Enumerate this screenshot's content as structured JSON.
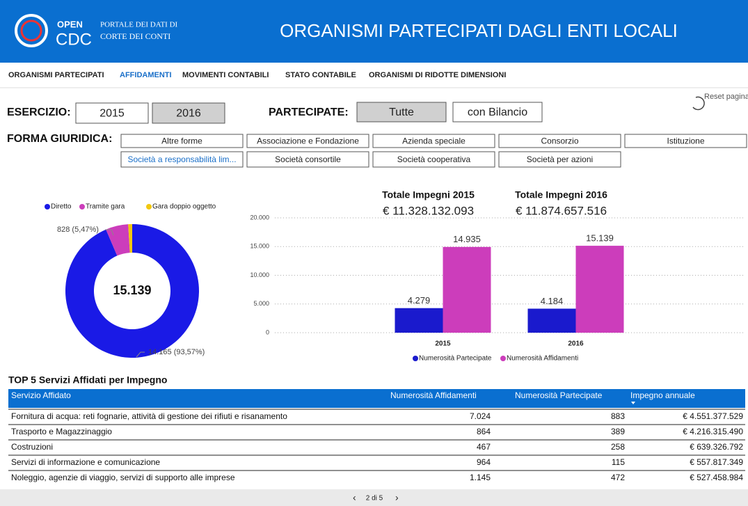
{
  "header": {
    "logo": "OPEN",
    "logo_sub": "CDC",
    "portal_line1": "PORTALE DEI DATI DI",
    "portal_line2": "CORTE DEI CONTI",
    "title": "ORGANISMI PARTECIPATI DAGLI ENTI LOCALI"
  },
  "nav": {
    "items": [
      "ORGANISMI PARTECIPATI",
      "AFFIDAMENTI",
      "MOVIMENTI CONTABILI",
      "STATO CONTABILE",
      "ORGANISMI DI RIDOTTE DIMENSIONI"
    ],
    "active": 1
  },
  "reset": "Reset pagina",
  "filters": {
    "esercizio_label": "ESERCIZIO:",
    "esercizio": [
      "2015",
      "2016"
    ],
    "esercizio_selected": 1,
    "partecipate_label": "PARTECIPATE:",
    "partecipate": [
      "Tutte",
      "con Bilancio"
    ],
    "partecipate_selected": 0,
    "forma_label": "FORMA GIURIDICA:",
    "forma": [
      "Altre forme",
      "Associazione e Fondazione",
      "Azienda speciale",
      "Consorzio",
      "Istituzione",
      "Società a responsabilità lim...",
      "Società consortile",
      "Società cooperativa",
      "Società per azioni"
    ],
    "forma_highlight": 5
  },
  "chart_data": [
    {
      "type": "pie",
      "donut": true,
      "center_label": "15.139",
      "categories": [
        "Diretto",
        "Tramite gara",
        "Gara doppio oggetto"
      ],
      "values": [
        14165,
        828,
        146
      ],
      "value_labels": [
        "14.165 (93,57%)",
        "828 (5,47%)",
        null
      ],
      "colors": [
        "#1a1ae6",
        "#cc3dbb",
        "#f2c80f"
      ],
      "legend": "top"
    },
    {
      "type": "bar",
      "categories": [
        "2015",
        "2016"
      ],
      "series": [
        {
          "name": "Numerosità Partecipate",
          "color": "#1a1acd",
          "values": [
            4279,
            4184
          ],
          "value_labels": [
            "4.279",
            "4.184"
          ]
        },
        {
          "name": "Numerosità Affidamenti",
          "color": "#cc3dbb",
          "values": [
            14935,
            15139
          ],
          "value_labels": [
            "14.935",
            "15.139"
          ]
        }
      ],
      "ylim": [
        0,
        20000
      ],
      "yticks": [
        0,
        {
          "value": 5000,
          "label": "5.000"
        },
        {
          "value": 10000,
          "label": "10.000"
        },
        {
          "value": 15000,
          "label": "15.000"
        },
        {
          "value": 20000,
          "label": "20.000"
        }
      ],
      "grid": true,
      "legend": "bottom",
      "annotations": [
        {
          "title": "Totale Impegni 2015",
          "value": "€ 11.328.132.093"
        },
        {
          "title": "Totale Impegni 2016",
          "value": "€ 11.874.657.516"
        }
      ]
    }
  ],
  "table": {
    "title": "TOP 5 Servizi Affidati per Impegno",
    "columns": [
      "Servizio Affidato",
      "Numerosità Affidamenti",
      "Numerosità Partecipate",
      "Impegno annuale"
    ],
    "rows": [
      [
        "Fornitura di acqua: reti fognarie, attività di gestione dei rifiuti e risanamento",
        "7.024",
        "883",
        "€ 4.551.377.529"
      ],
      [
        "Trasporto e Magazzinaggio",
        "864",
        "389",
        "€ 4.216.315.490"
      ],
      [
        "Costruzioni",
        "467",
        "258",
        "€ 639.326.792"
      ],
      [
        "Servizi di informazione e comunicazione",
        "964",
        "115",
        "€ 557.817.349"
      ],
      [
        "Noleggio, agenzie di viaggio, servizi di supporto alle imprese",
        "1.145",
        "472",
        "€ 527.458.984"
      ]
    ]
  },
  "footer": {
    "page": "2 di 5"
  }
}
